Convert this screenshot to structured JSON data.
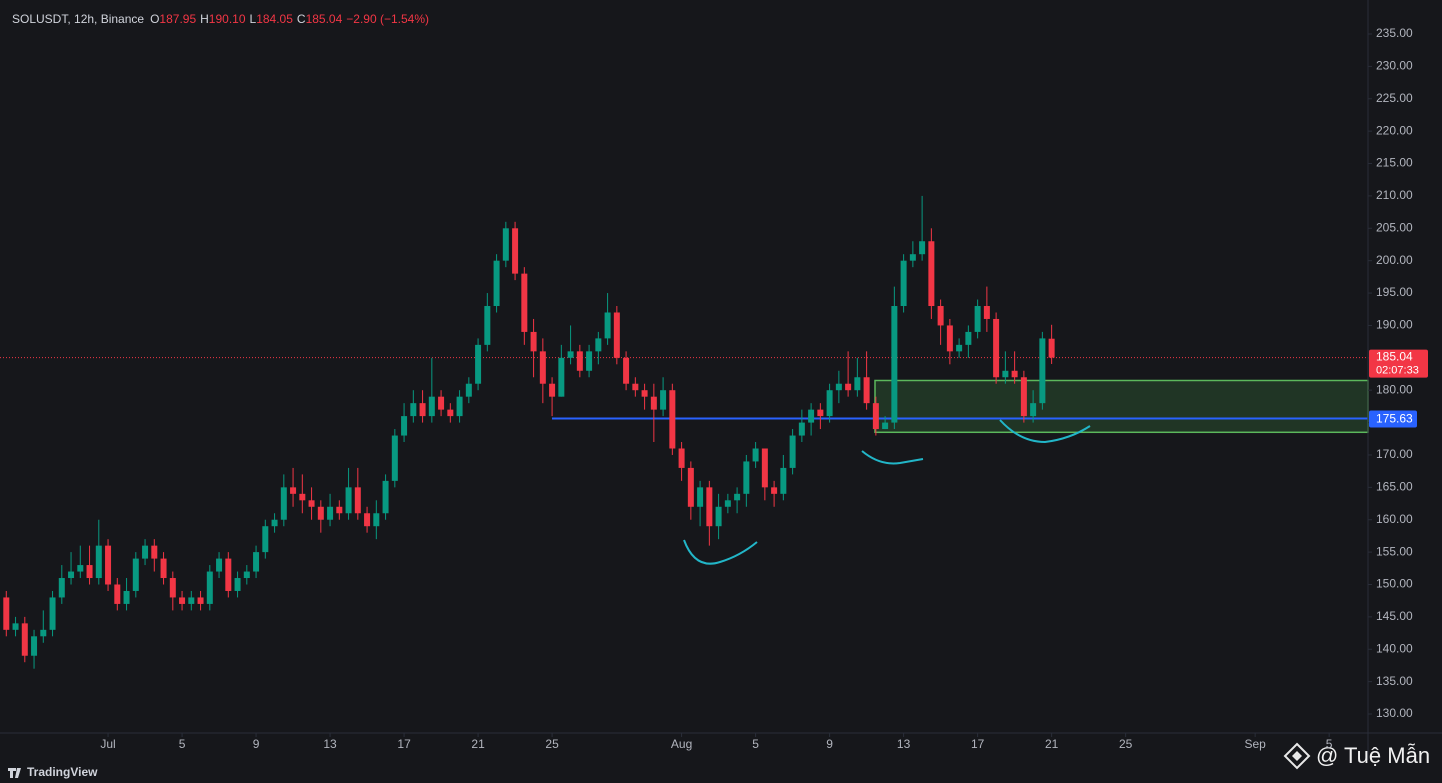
{
  "chart_data": {
    "type": "candlestick",
    "legend": {
      "symbol": "SOLUSDT, 12h, Binance",
      "fields": [
        [
          "O",
          "187.95"
        ],
        [
          "H",
          "190.10"
        ],
        [
          "L",
          "184.05"
        ],
        [
          "C",
          "185.04"
        ]
      ],
      "change": "−2.90 (−1.54%)"
    },
    "up_color": "#089981",
    "down_color": "#f23645",
    "open": [
      148,
      143,
      144,
      139,
      142,
      143,
      148,
      151,
      152,
      153,
      151,
      156,
      150,
      147,
      149,
      154,
      156,
      154,
      151,
      148,
      147,
      148,
      147,
      152,
      154,
      149,
      151,
      152,
      155,
      159,
      160,
      165,
      164,
      163,
      162,
      160,
      162,
      161,
      165,
      161,
      159,
      161,
      166,
      173,
      176,
      178,
      176,
      179,
      177,
      176,
      179,
      181,
      187,
      193,
      200,
      205,
      198,
      189,
      186,
      181,
      179,
      185,
      186,
      183,
      186,
      188,
      192,
      185,
      181,
      180,
      179,
      177,
      180,
      171,
      168,
      162,
      165,
      159,
      162,
      163,
      164,
      169,
      171,
      165,
      164,
      168,
      173,
      175,
      177,
      176,
      180,
      181,
      180,
      182,
      178,
      174,
      175,
      193,
      200,
      201,
      203,
      193,
      190,
      186,
      187,
      189,
      193,
      191,
      182,
      183,
      182,
      176,
      178,
      187.95
    ],
    "high": [
      149,
      145,
      145,
      143,
      146,
      149,
      153,
      155,
      156,
      156,
      160,
      157,
      151,
      151,
      155,
      157,
      157,
      155,
      152,
      149,
      149,
      149,
      153,
      155,
      155,
      152,
      153,
      156,
      160,
      161,
      167,
      168,
      167,
      165,
      163,
      164,
      163,
      168,
      168,
      162,
      163,
      167,
      174,
      178,
      180,
      180,
      185,
      180,
      178,
      180,
      182,
      188,
      195,
      201,
      206,
      206,
      199,
      191,
      188,
      182,
      187,
      190,
      187,
      187,
      189,
      195,
      193,
      186,
      182,
      181,
      181,
      182,
      181,
      172,
      169,
      166,
      166,
      164,
      164,
      165,
      170,
      172,
      171,
      166,
      170,
      174,
      177,
      178,
      178,
      181,
      183,
      186,
      185,
      186,
      179,
      176,
      196,
      201,
      203,
      210,
      205,
      194,
      191,
      188,
      190,
      194,
      196,
      192,
      186,
      186,
      183,
      180,
      189,
      190.1
    ],
    "low": [
      142,
      142,
      138,
      137,
      141,
      142,
      147,
      150,
      151,
      150,
      150,
      149,
      146,
      146,
      148,
      153,
      152,
      150,
      146,
      146,
      146,
      146,
      146,
      151,
      148,
      148,
      150,
      151,
      154,
      158,
      159,
      162,
      161,
      160,
      158,
      159,
      160,
      160,
      160,
      158,
      157,
      160,
      165,
      172,
      175,
      175,
      175,
      176,
      175,
      175,
      178,
      180,
      186,
      192,
      199,
      197,
      187,
      182,
      178,
      176,
      179,
      184,
      182,
      182,
      184,
      187,
      184,
      180,
      179,
      177,
      172,
      176,
      170,
      166,
      160,
      159,
      156,
      157,
      161,
      161,
      162,
      168,
      163,
      162,
      163,
      167,
      172,
      173,
      174,
      175,
      178,
      179,
      179,
      177,
      173,
      174,
      174,
      192,
      199,
      200,
      191,
      187,
      184,
      185,
      185,
      188,
      189,
      181,
      181,
      181,
      175,
      175,
      177,
      184.05
    ],
    "close": [
      143,
      144,
      139,
      142,
      143,
      148,
      151,
      152,
      153,
      151,
      156,
      150,
      147,
      149,
      154,
      156,
      154,
      151,
      148,
      147,
      148,
      147,
      152,
      154,
      149,
      151,
      152,
      155,
      159,
      160,
      165,
      164,
      163,
      162,
      160,
      162,
      161,
      165,
      161,
      159,
      161,
      166,
      173,
      176,
      178,
      176,
      179,
      177,
      176,
      179,
      181,
      187,
      193,
      200,
      205,
      198,
      189,
      186,
      181,
      179,
      185,
      186,
      183,
      186,
      188,
      192,
      185,
      181,
      180,
      179,
      177,
      180,
      171,
      168,
      162,
      165,
      159,
      162,
      163,
      164,
      169,
      171,
      165,
      164,
      168,
      173,
      175,
      177,
      176,
      180,
      181,
      180,
      182,
      178,
      174,
      175,
      193,
      200,
      201,
      203,
      193,
      190,
      186,
      187,
      189,
      193,
      191,
      182,
      183,
      182,
      176,
      178,
      188,
      185.04
    ],
    "xlim": [
      -0.68,
      147.2
    ],
    "xticks": [
      {
        "value": 11,
        "label": "Jul"
      },
      {
        "value": 19,
        "label": "5"
      },
      {
        "value": 27,
        "label": "9"
      },
      {
        "value": 35,
        "label": "13"
      },
      {
        "value": 43,
        "label": "17"
      },
      {
        "value": 51,
        "label": "21"
      },
      {
        "value": 59,
        "label": "25"
      },
      {
        "value": 73,
        "label": "Aug"
      },
      {
        "value": 81,
        "label": "5"
      },
      {
        "value": 89,
        "label": "9"
      },
      {
        "value": 97,
        "label": "13"
      },
      {
        "value": 105,
        "label": "17"
      },
      {
        "value": 113,
        "label": "21"
      },
      {
        "value": 121,
        "label": "25"
      },
      {
        "value": 135,
        "label": "Sep"
      },
      {
        "value": 143,
        "label": "5"
      }
    ],
    "ylim": [
      127.07,
      240.25
    ],
    "yticks": [
      {
        "value": 130,
        "label": "130.00"
      },
      {
        "value": 135,
        "label": "135.00"
      },
      {
        "value": 140,
        "label": "140.00"
      },
      {
        "value": 145,
        "label": "145.00"
      },
      {
        "value": 150,
        "label": "150.00"
      },
      {
        "value": 155,
        "label": "155.00"
      },
      {
        "value": 160,
        "label": "160.00"
      },
      {
        "value": 165,
        "label": "165.00"
      },
      {
        "value": 170,
        "label": "170.00"
      },
      {
        "value": 175,
        "label": "175.00"
      },
      {
        "value": 180,
        "label": "180.00"
      },
      {
        "value": 185,
        "label": "185.00"
      },
      {
        "value": 190,
        "label": "190.00"
      },
      {
        "value": 195,
        "label": "195.00"
      },
      {
        "value": 200,
        "label": "200.00"
      },
      {
        "value": 205,
        "label": "205.00"
      },
      {
        "value": 210,
        "label": "210.00"
      },
      {
        "value": 215,
        "label": "215.00"
      },
      {
        "value": 220,
        "label": "220.00"
      },
      {
        "value": 225,
        "label": "225.00"
      },
      {
        "value": 230,
        "label": "230.00"
      },
      {
        "value": 235,
        "label": "235.00"
      }
    ],
    "grid": false,
    "last_price": {
      "value": 185.04,
      "label": "185.04",
      "countdown": "02:07:33"
    },
    "support": {
      "value": 175.63,
      "label": "175.63",
      "color": "#2962ff"
    },
    "zone": {
      "low": 173.5,
      "high": 181.5
    },
    "branding": "TradingView",
    "watermark": "@ Tuệ Mẫn"
  }
}
